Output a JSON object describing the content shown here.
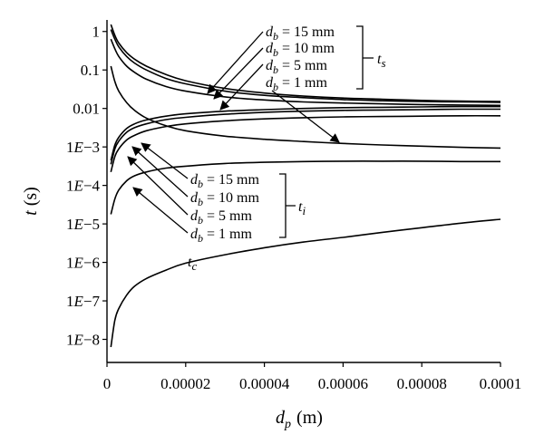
{
  "chart_data": {
    "type": "line",
    "xlabel": {
      "var": "d",
      "sub": "p",
      "unit": "(m)"
    },
    "ylabel": {
      "var": "t",
      "unit": "(s)"
    },
    "xlim": [
      0,
      0.0001
    ],
    "ylim_log10": [
      -8.6,
      0.3
    ],
    "y_scale": "log",
    "grid": false,
    "x_ticks": [
      0,
      2e-05,
      4e-05,
      6e-05,
      8e-05,
      0.0001
    ],
    "x_tick_labels": [
      "0",
      "0.00002",
      "0.00004",
      "0.00006",
      "0.00008",
      "0.0001"
    ],
    "y_ticks_log10": [
      0,
      -1,
      -2,
      -3,
      -4,
      -5,
      -6,
      -7,
      -8
    ],
    "y_tick_labels": [
      {
        "main": "1",
        "e": ""
      },
      {
        "main": "0.1",
        "e": ""
      },
      {
        "main": "0.01",
        "e": ""
      },
      {
        "main": "1",
        "e": "−3"
      },
      {
        "main": "1",
        "e": "−4"
      },
      {
        "main": "1",
        "e": "−5"
      },
      {
        "main": "1",
        "e": "−6"
      },
      {
        "main": "1",
        "e": "−7"
      },
      {
        "main": "1",
        "e": "−8"
      }
    ],
    "x": [
      1e-06,
      2e-06,
      3e-06,
      5e-06,
      7e-06,
      1e-05,
      1.5e-05,
      2e-05,
      3e-05,
      4e-05,
      5e-05,
      6e-05,
      7e-05,
      8e-05,
      9e-05,
      0.0001
    ],
    "series": [
      {
        "group": "ts",
        "db": "15 mm",
        "log10_t": [
          0.18,
          -0.1,
          -0.3,
          -0.55,
          -0.72,
          -0.9,
          -1.12,
          -1.28,
          -1.48,
          -1.6,
          -1.68,
          -1.73,
          -1.76,
          -1.79,
          -1.81,
          -1.82
        ]
      },
      {
        "group": "ts",
        "db": "10 mm",
        "log10_t": [
          0.05,
          -0.2,
          -0.4,
          -0.65,
          -0.82,
          -1.0,
          -1.22,
          -1.36,
          -1.55,
          -1.66,
          -1.72,
          -1.77,
          -1.8,
          -1.82,
          -1.83,
          -1.84
        ]
      },
      {
        "group": "ts",
        "db": "5 mm",
        "log10_t": [
          -0.2,
          -0.45,
          -0.65,
          -0.9,
          -1.06,
          -1.24,
          -1.43,
          -1.55,
          -1.7,
          -1.78,
          -1.83,
          -1.86,
          -1.88,
          -1.9,
          -1.91,
          -1.92
        ]
      },
      {
        "group": "ts",
        "db": "1 mm",
        "log10_t": [
          -0.9,
          -1.3,
          -1.55,
          -1.85,
          -2.05,
          -2.25,
          -2.45,
          -2.58,
          -2.72,
          -2.8,
          -2.86,
          -2.91,
          -2.95,
          -2.98,
          -3.01,
          -3.03
        ]
      },
      {
        "group": "ti",
        "db": "15 mm",
        "log10_t": [
          -3.35,
          -2.95,
          -2.75,
          -2.52,
          -2.4,
          -2.3,
          -2.2,
          -2.14,
          -2.07,
          -2.03,
          -2.0,
          -1.98,
          -1.97,
          -1.96,
          -1.95,
          -1.95
        ]
      },
      {
        "group": "ti",
        "db": "10 mm",
        "log10_t": [
          -3.45,
          -3.05,
          -2.85,
          -2.62,
          -2.5,
          -2.4,
          -2.29,
          -2.23,
          -2.15,
          -2.1,
          -2.07,
          -2.05,
          -2.04,
          -2.03,
          -2.02,
          -2.02
        ]
      },
      {
        "group": "ti",
        "db": "5 mm",
        "log10_t": [
          -3.65,
          -3.25,
          -3.05,
          -2.82,
          -2.7,
          -2.58,
          -2.47,
          -2.4,
          -2.32,
          -2.27,
          -2.24,
          -2.22,
          -2.21,
          -2.2,
          -2.19,
          -2.19
        ]
      },
      {
        "group": "ti",
        "db": "1 mm",
        "log10_t": [
          -4.75,
          -4.35,
          -4.12,
          -3.88,
          -3.75,
          -3.65,
          -3.55,
          -3.5,
          -3.43,
          -3.4,
          -3.38,
          -3.37,
          -3.37,
          -3.37,
          -3.38,
          -3.38
        ]
      },
      {
        "group": "tc",
        "db": "",
        "log10_t": [
          -8.2,
          -7.5,
          -7.2,
          -6.85,
          -6.62,
          -6.42,
          -6.2,
          -6.02,
          -5.8,
          -5.62,
          -5.47,
          -5.35,
          -5.22,
          -5.1,
          -4.98,
          -4.88
        ]
      }
    ],
    "annotations": {
      "ts_labels": [
        {
          "var": "d",
          "sub": "b",
          "text": " = 15 mm"
        },
        {
          "var": "d",
          "sub": "b",
          "text": " = 10 mm"
        },
        {
          "var": "d",
          "sub": "b",
          "text": " = 5 mm"
        },
        {
          "var": "d",
          "sub": "b",
          "text": " = 1 mm"
        }
      ],
      "ti_labels": [
        {
          "var": "d",
          "sub": "b",
          "text": " = 15 mm"
        },
        {
          "var": "d",
          "sub": "b",
          "text": " = 10 mm"
        },
        {
          "var": "d",
          "sub": "b",
          "text": " = 5 mm"
        },
        {
          "var": "d",
          "sub": "b",
          "text": " = 1 mm"
        }
      ],
      "ts_group": {
        "var": "t",
        "sub": "s"
      },
      "ti_group": {
        "var": "t",
        "sub": "i"
      },
      "tc_label": {
        "var": "t",
        "sub": "c"
      }
    }
  }
}
